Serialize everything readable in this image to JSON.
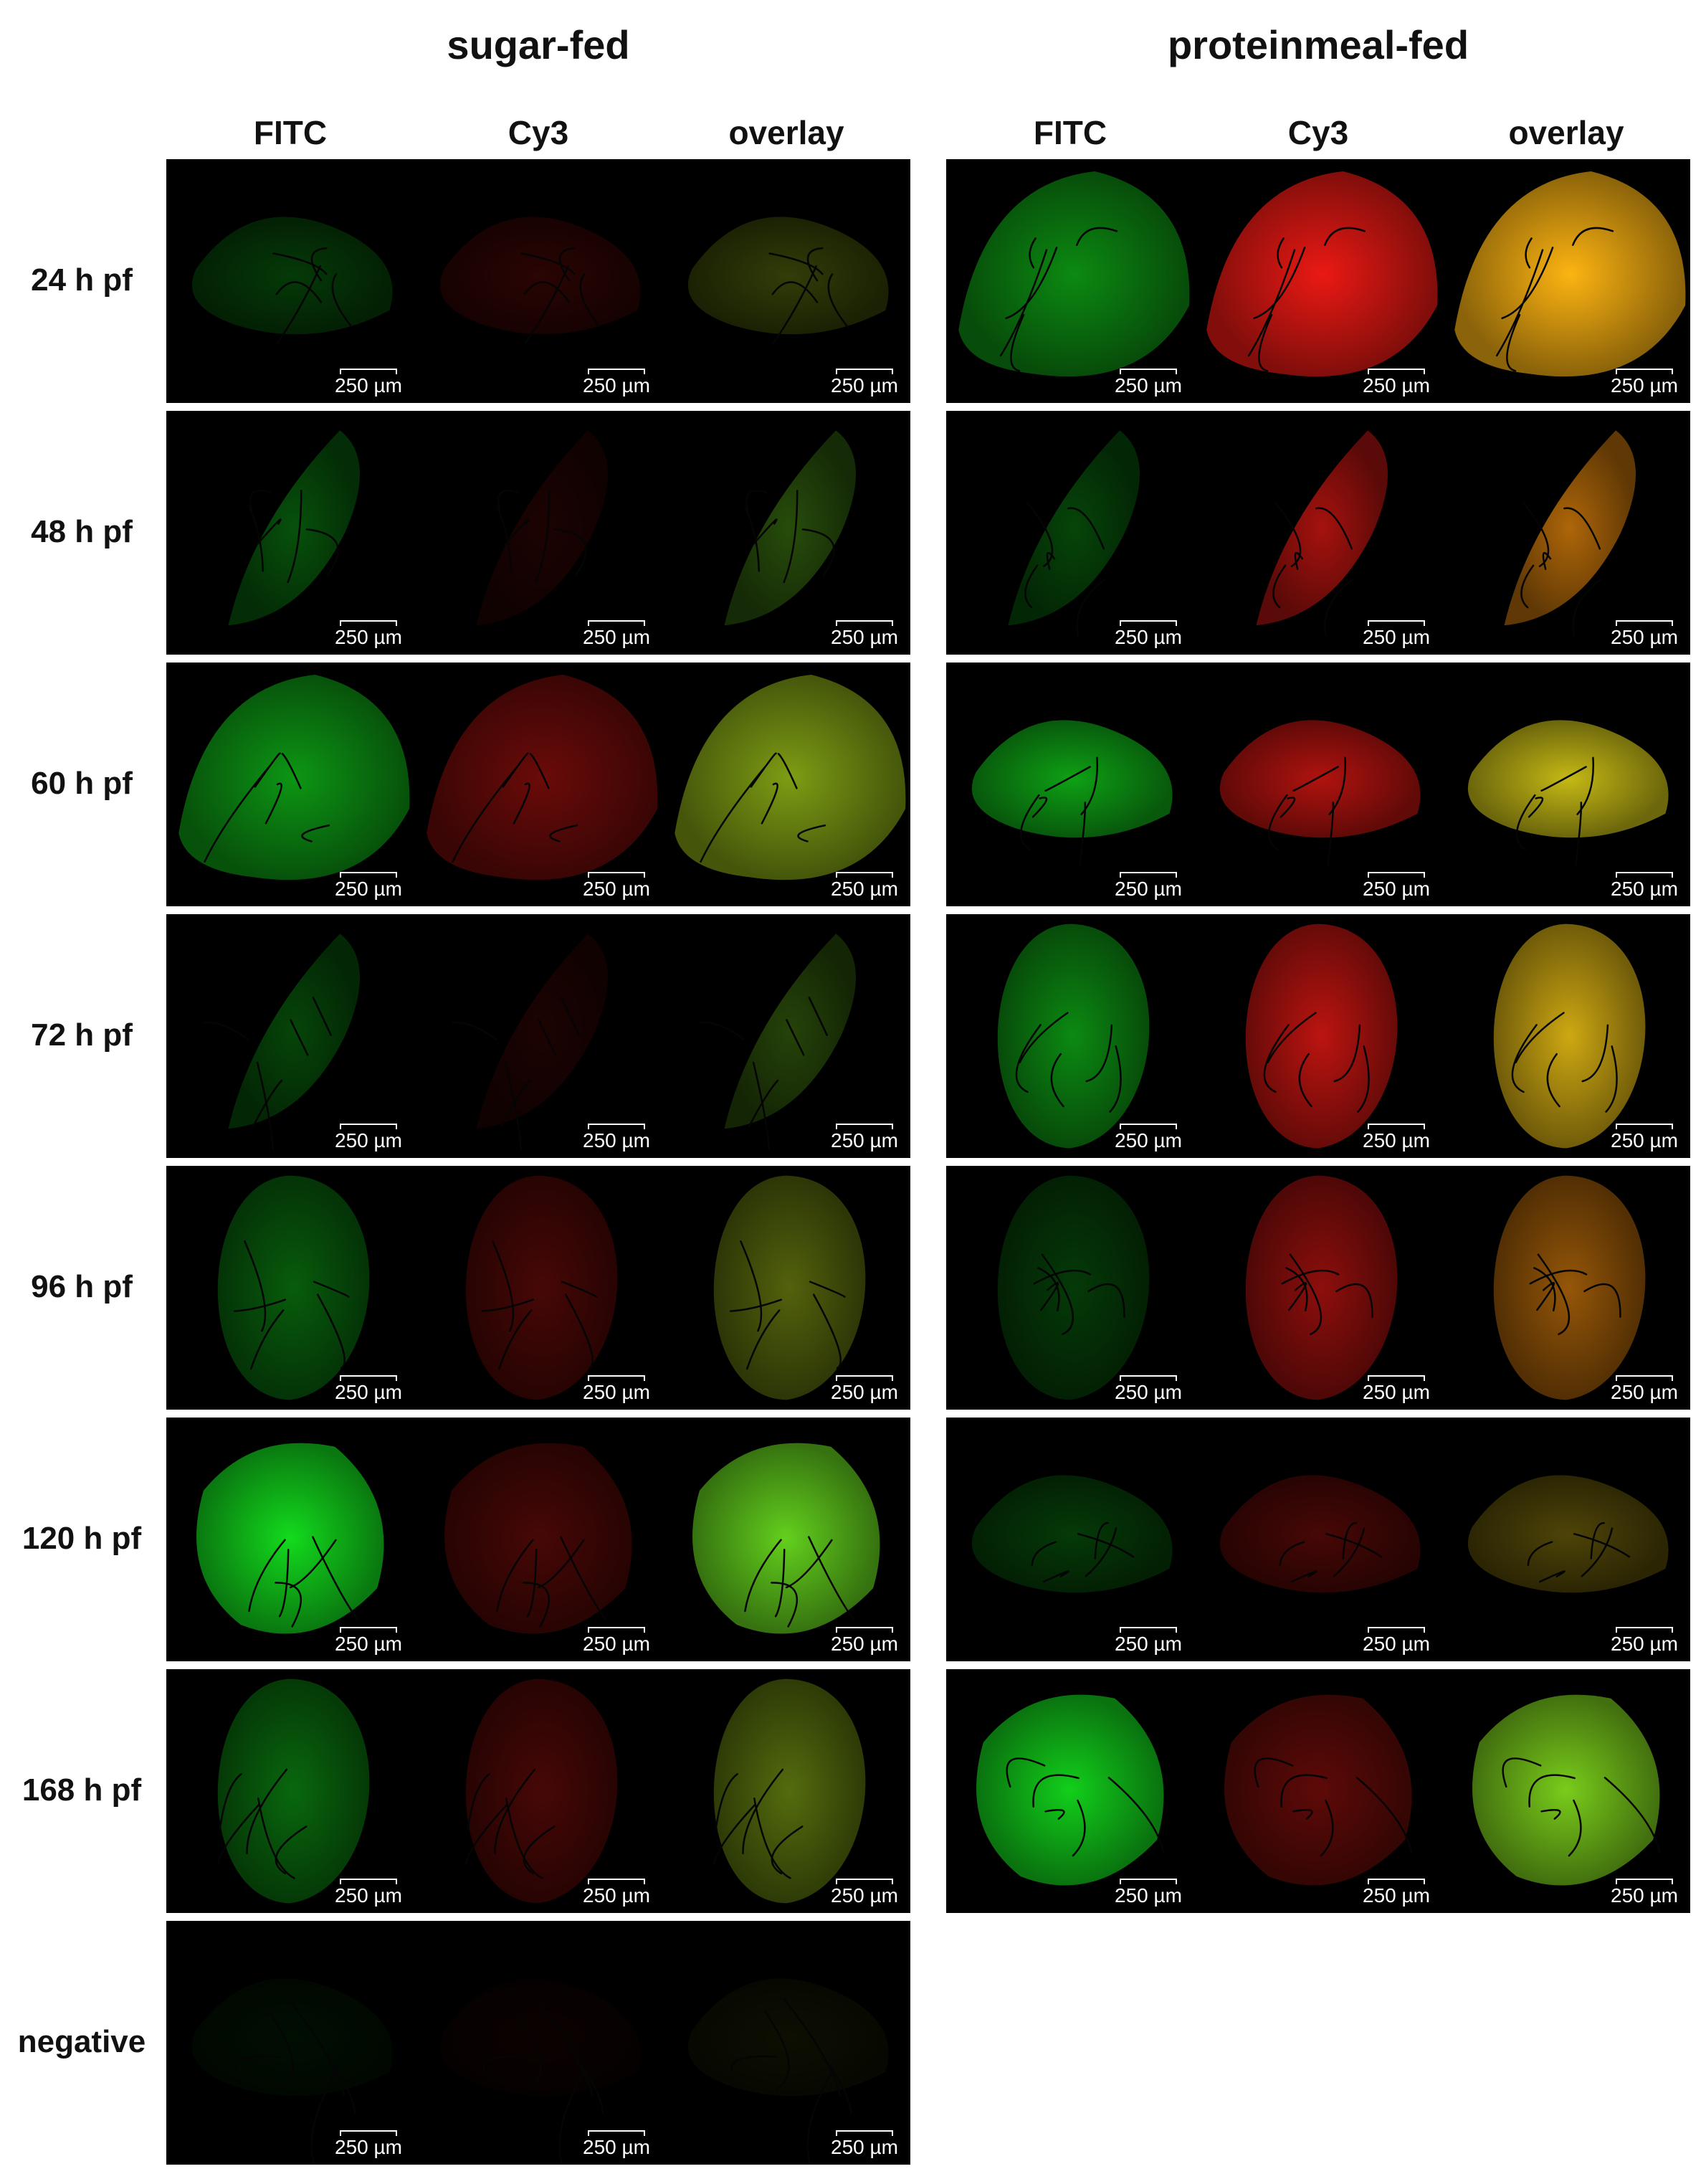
{
  "groups": [
    {
      "title": "sugar-fed",
      "columns": [
        "FITC",
        "Cy3",
        "overlay"
      ],
      "rows": [
        {
          "label": "24 h pf",
          "shape": "wide",
          "green": 0.25,
          "red": 0.18
        },
        {
          "label": "48 h pf",
          "shape": "slim",
          "green": 0.35,
          "red": 0.12
        },
        {
          "label": "60 h pf",
          "shape": "big",
          "green": 0.65,
          "red": 0.45
        },
        {
          "label": "72 h pf",
          "shape": "slim",
          "green": 0.3,
          "red": 0.12
        },
        {
          "label": "96 h pf",
          "shape": "oval",
          "green": 0.4,
          "red": 0.3
        },
        {
          "label": "120 h pf",
          "shape": "round",
          "green": 0.95,
          "red": 0.3
        },
        {
          "label": "168 h pf",
          "shape": "oval",
          "green": 0.45,
          "red": 0.3
        },
        {
          "label": "negative",
          "shape": "wide",
          "green": 0.06,
          "red": 0.05
        }
      ]
    },
    {
      "title": "proteinmeal-fed",
      "columns": [
        "FITC",
        "Cy3",
        "overlay"
      ],
      "rows": [
        {
          "label": "24 h pf",
          "shape": "big",
          "green": 0.6,
          "red": 1.0
        },
        {
          "label": "48 h pf",
          "shape": "slim",
          "green": 0.3,
          "red": 0.7
        },
        {
          "label": "60 h pf",
          "shape": "wide",
          "green": 0.7,
          "red": 0.75
        },
        {
          "label": "72 h pf",
          "shape": "oval",
          "green": 0.6,
          "red": 0.8
        },
        {
          "label": "96 h pf",
          "shape": "oval",
          "green": 0.25,
          "red": 0.6
        },
        {
          "label": "120 h pf",
          "shape": "wide",
          "green": 0.25,
          "red": 0.3
        },
        {
          "label": "168 h pf",
          "shape": "round",
          "green": 0.9,
          "red": 0.4
        }
      ]
    }
  ],
  "scale_bar": "250 µm",
  "colors": {
    "fitc": "#22cc22",
    "cy3": "#dd1e1e",
    "overlay": "#b8a030",
    "background": "#000000"
  }
}
